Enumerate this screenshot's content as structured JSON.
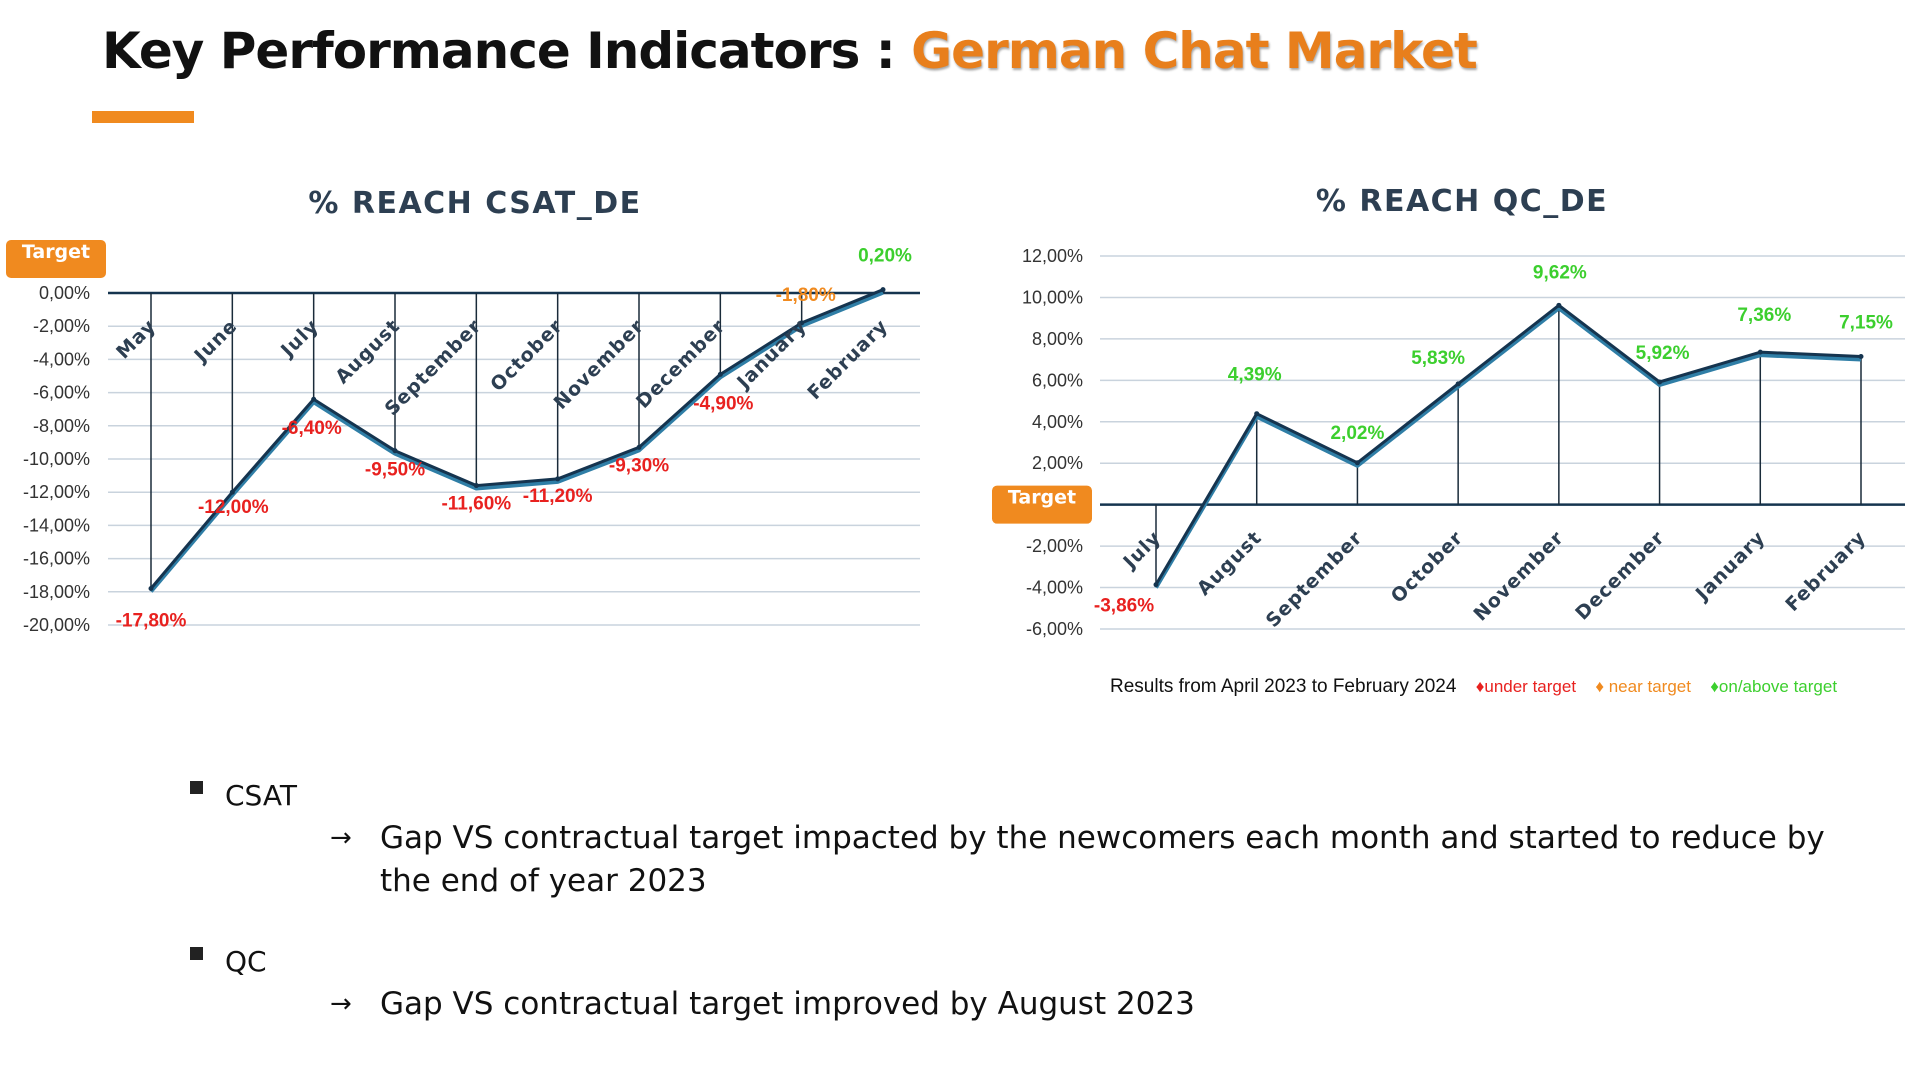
{
  "title": {
    "prefix": "Key Performance Indicators : ",
    "accent": "German Chat Market"
  },
  "colors": {
    "accent": "#f08a1f",
    "line_dark": "#15344f",
    "line_light": "#2f7ea6",
    "under_target": "#e8211f",
    "near_target": "#f08a1f",
    "on_target": "#3ccf2e",
    "grid": "#c9d3dd"
  },
  "chart_data": [
    {
      "type": "line",
      "title": "% REACH CSAT_DE",
      "target_label": "Target",
      "categories": [
        "May",
        "June",
        "July",
        "August",
        "September",
        "October",
        "November",
        "December",
        "January",
        "February"
      ],
      "values": [
        -17.8,
        -12.0,
        -6.4,
        -9.5,
        -11.6,
        -11.2,
        -9.3,
        -4.9,
        -1.8,
        0.2
      ],
      "data_labels": [
        "-17,80%",
        "-12,00%",
        "-6,40%",
        "-9,50%",
        "-11,60%",
        "-11,20%",
        "-9,30%",
        "-4,90%",
        "-1,80%",
        "0,20%"
      ],
      "label_status": [
        "under",
        "under",
        "under",
        "under",
        "under",
        "under",
        "under",
        "under",
        "near",
        "on"
      ],
      "ylim": [
        -20,
        0
      ],
      "y_ticks": [
        "0,00%",
        "-2,00%",
        "-4,00%",
        "-6,00%",
        "-8,00%",
        "-10,00%",
        "-12,00%",
        "-14,00%",
        "-16,00%",
        "-18,00%",
        "-20,00%"
      ],
      "grid": true
    },
    {
      "type": "line",
      "title": "% REACH QC_DE",
      "target_label": "Target",
      "categories": [
        "July",
        "August",
        "September",
        "October",
        "November",
        "December",
        "January",
        "February"
      ],
      "values": [
        -3.86,
        4.39,
        2.02,
        5.83,
        9.62,
        5.92,
        7.36,
        7.15
      ],
      "data_labels": [
        "-3,86%",
        "4,39%",
        "2,02%",
        "5,83%",
        "9,62%",
        "5,92%",
        "7,36%",
        "7,15%"
      ],
      "label_status": [
        "under",
        "on",
        "on",
        "on",
        "on",
        "on",
        "on",
        "on"
      ],
      "ylim": [
        -6,
        12
      ],
      "y_ticks": [
        "12,00%",
        "10,00%",
        "8,00%",
        "6,00%",
        "4,00%",
        "2,00%",
        "",
        "-2,00%",
        "-4,00%",
        "-6,00%"
      ],
      "grid": true
    }
  ],
  "legend_note": {
    "text": "Results from April 2023 to February 2024",
    "under": "♦under target",
    "near": "♦ near target",
    "on": "♦on/above target"
  },
  "bullets": [
    {
      "label": "CSAT",
      "arrow": "→",
      "detail": "Gap VS contractual target impacted by the newcomers each month and started to reduce by the end of year 2023"
    },
    {
      "label": "QC",
      "arrow": "→",
      "detail": "Gap VS contractual target improved by August 2023"
    }
  ]
}
